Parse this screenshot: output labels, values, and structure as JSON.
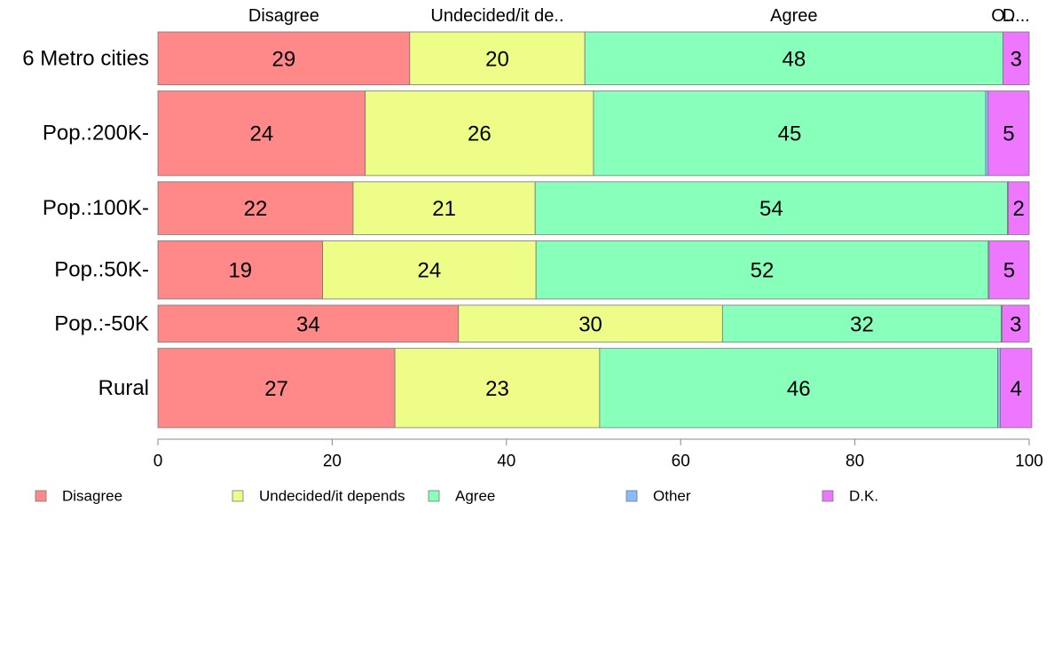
{
  "chart_data": {
    "type": "bar",
    "orientation": "horizontal",
    "stacked": true,
    "categories": [
      "6 Metro cities",
      "Pop.:200K-",
      "Pop.:100K-",
      "Pop.:50K-",
      "Pop.:-50K",
      "Rural"
    ],
    "bar_weights": [
      1.0,
      1.6,
      1.0,
      1.1,
      0.7,
      1.5
    ],
    "series": [
      {
        "name": "Disagree",
        "header": "Disagree",
        "color": "#ff8888",
        "values": [
          28.9,
          23.8,
          22.4,
          18.9,
          34.5,
          27.2
        ],
        "labels": [
          "29",
          "24",
          "22",
          "19",
          "34",
          "27"
        ]
      },
      {
        "name": "Undecided/it depends",
        "header": "Undecided/it de..",
        "color": "#edfd88",
        "values": [
          20.1,
          26.2,
          20.9,
          24.5,
          30.3,
          23.5
        ],
        "labels": [
          "20",
          "26",
          "21",
          "24",
          "30",
          "23"
        ]
      },
      {
        "name": "Agree",
        "header": "Agree",
        "color": "#88ffbb",
        "values": [
          48.0,
          45.0,
          54.2,
          51.9,
          32.0,
          45.7
        ],
        "labels": [
          "48",
          "45",
          "54",
          "52",
          "32",
          "46"
        ]
      },
      {
        "name": "Other",
        "header": "O..",
        "color": "#88bbff",
        "values": [
          0.0,
          0.3,
          0.1,
          0.1,
          0.1,
          0.3
        ],
        "labels": [
          "",
          "",
          "",
          "",
          "",
          ""
        ]
      },
      {
        "name": "D.K.",
        "header": "D...",
        "color": "#ee77ff",
        "values": [
          3.0,
          4.7,
          2.4,
          4.6,
          3.1,
          3.6
        ],
        "labels": [
          "3",
          "5",
          "2",
          "5",
          "3",
          "4"
        ]
      }
    ],
    "xlim": [
      0,
      100
    ],
    "xticks": [
      "0",
      "20",
      "40",
      "60",
      "80",
      "100"
    ],
    "grid": false,
    "legend_position": "bottom"
  }
}
